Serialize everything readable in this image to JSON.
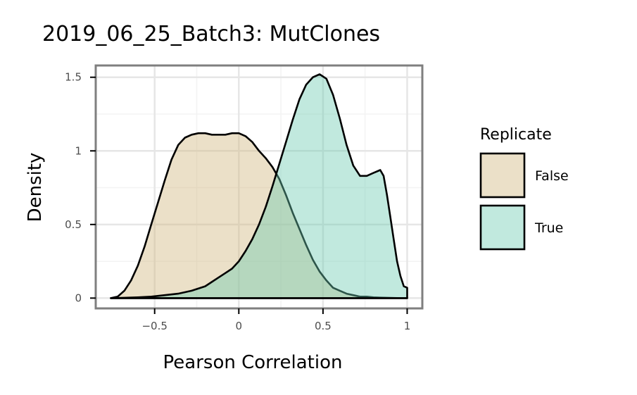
{
  "chart_data": {
    "type": "area",
    "title": "2019_06_25_Batch3: MutClones",
    "xlabel": "Pearson Correlation",
    "ylabel": "Density",
    "xlim": [
      -0.85,
      1.09
    ],
    "ylim": [
      -0.07,
      1.58
    ],
    "x_ticks": [
      -0.5,
      0,
      0.5,
      1
    ],
    "x_tick_labels": [
      "−0.5",
      "0",
      "0.5",
      "1"
    ],
    "y_ticks": [
      0,
      0.5,
      1,
      1.5
    ],
    "y_tick_labels": [
      "0",
      "0.5",
      "1",
      "1.5"
    ],
    "grid": true,
    "legend": {
      "title": "Replicate",
      "position": "right"
    },
    "series": [
      {
        "name": "False",
        "color": "#d2bb86",
        "opacity": 0.45,
        "x": [
          -0.76,
          -0.72,
          -0.68,
          -0.64,
          -0.6,
          -0.56,
          -0.52,
          -0.48,
          -0.44,
          -0.4,
          -0.36,
          -0.32,
          -0.28,
          -0.24,
          -0.2,
          -0.16,
          -0.12,
          -0.08,
          -0.04,
          0.0,
          0.04,
          0.08,
          0.12,
          0.16,
          0.2,
          0.24,
          0.28,
          0.32,
          0.36,
          0.4,
          0.44,
          0.48,
          0.52,
          0.56,
          0.6,
          0.64,
          0.68,
          0.72,
          0.76,
          0.8,
          0.84,
          0.88,
          0.92,
          0.96,
          1.0
        ],
        "y": [
          0.0,
          0.01,
          0.05,
          0.12,
          0.22,
          0.35,
          0.5,
          0.65,
          0.8,
          0.94,
          1.04,
          1.09,
          1.11,
          1.12,
          1.12,
          1.11,
          1.11,
          1.11,
          1.12,
          1.12,
          1.1,
          1.06,
          1.0,
          0.95,
          0.89,
          0.81,
          0.7,
          0.58,
          0.47,
          0.36,
          0.26,
          0.18,
          0.12,
          0.07,
          0.05,
          0.03,
          0.02,
          0.01,
          0.01,
          0.005,
          0.003,
          0.002,
          0.001,
          0.0,
          0.0
        ]
      },
      {
        "name": "True",
        "color": "#6ccbb1",
        "opacity": 0.42,
        "x": [
          -0.76,
          -0.68,
          -0.6,
          -0.52,
          -0.44,
          -0.36,
          -0.28,
          -0.2,
          -0.16,
          -0.12,
          -0.08,
          -0.04,
          0.0,
          0.04,
          0.08,
          0.12,
          0.16,
          0.2,
          0.24,
          0.28,
          0.32,
          0.36,
          0.4,
          0.44,
          0.48,
          0.52,
          0.56,
          0.6,
          0.64,
          0.68,
          0.72,
          0.76,
          0.8,
          0.84,
          0.86,
          0.88,
          0.9,
          0.92,
          0.94,
          0.96,
          0.98,
          1.0
        ],
        "y": [
          0.0,
          0.002,
          0.005,
          0.01,
          0.02,
          0.03,
          0.05,
          0.08,
          0.11,
          0.14,
          0.17,
          0.2,
          0.25,
          0.32,
          0.4,
          0.5,
          0.62,
          0.76,
          0.91,
          1.06,
          1.21,
          1.35,
          1.45,
          1.5,
          1.52,
          1.49,
          1.38,
          1.22,
          1.04,
          0.9,
          0.83,
          0.83,
          0.85,
          0.87,
          0.83,
          0.7,
          0.55,
          0.4,
          0.25,
          0.15,
          0.08,
          0.07
        ]
      }
    ]
  }
}
